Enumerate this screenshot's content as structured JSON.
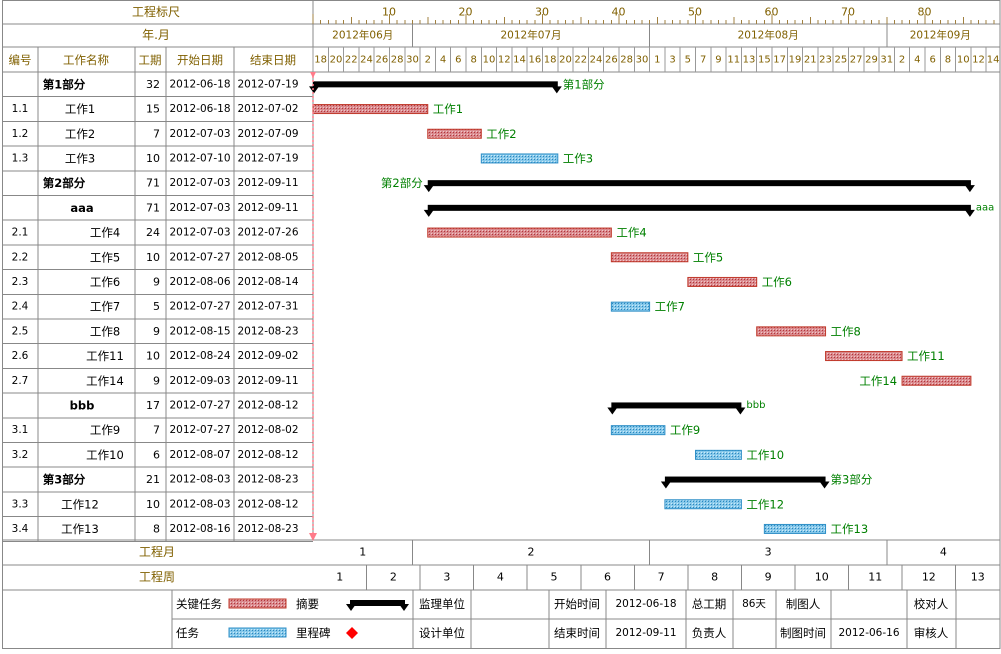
{
  "header": {
    "ruler_label": "工程标尺",
    "year_month_label": "年.月",
    "columns": [
      "编号",
      "工作名称",
      "工期",
      "开始日期",
      "结束日期"
    ],
    "ruler_ticks": [
      "10",
      "20",
      "30",
      "40",
      "50",
      "60",
      "70",
      "80"
    ],
    "months": [
      "2012年06月",
      "2012年07月",
      "2012年08月",
      "2012年09月"
    ],
    "day_labels": [
      "18",
      "20",
      "22",
      "24",
      "26",
      "28",
      "30",
      "2",
      "4",
      "6",
      "8",
      "10",
      "12",
      "14",
      "16",
      "18",
      "20",
      "22",
      "24",
      "26",
      "28",
      "30",
      "1",
      "3",
      "5",
      "7",
      "9",
      "11",
      "13",
      "15",
      "17",
      "19",
      "21",
      "23",
      "25",
      "27",
      "29",
      "31",
      "2",
      "4",
      "6",
      "8",
      "10",
      "12",
      "14"
    ]
  },
  "chart_data": {
    "type": "gantt",
    "x_axis": {
      "start_date": "2012-06-18",
      "end_date": "2012-09-14"
    },
    "tasks": [
      {
        "id": "",
        "name": "第1部分",
        "duration": 32,
        "start": "2012-06-18",
        "end": "2012-07-19",
        "kind": "summary",
        "level": 0
      },
      {
        "id": "1.1",
        "name": "工作1",
        "duration": 15,
        "start": "2012-06-18",
        "end": "2012-07-02",
        "kind": "critical",
        "level": 1
      },
      {
        "id": "1.2",
        "name": "工作2",
        "duration": 7,
        "start": "2012-07-03",
        "end": "2012-07-09",
        "kind": "critical",
        "level": 1
      },
      {
        "id": "1.3",
        "name": "工作3",
        "duration": 10,
        "start": "2012-07-10",
        "end": "2012-07-19",
        "kind": "task",
        "level": 1
      },
      {
        "id": "",
        "name": "第2部分",
        "duration": 71,
        "start": "2012-07-03",
        "end": "2012-09-11",
        "kind": "summary",
        "level": 0
      },
      {
        "id": "",
        "name": "aaa",
        "duration": 71,
        "start": "2012-07-03",
        "end": "2012-09-11",
        "kind": "summary",
        "level": 1
      },
      {
        "id": "2.1",
        "name": "工作4",
        "duration": 24,
        "start": "2012-07-03",
        "end": "2012-07-26",
        "kind": "critical",
        "level": 2
      },
      {
        "id": "2.2",
        "name": "工作5",
        "duration": 10,
        "start": "2012-07-27",
        "end": "2012-08-05",
        "kind": "critical",
        "level": 2
      },
      {
        "id": "2.3",
        "name": "工作6",
        "duration": 9,
        "start": "2012-08-06",
        "end": "2012-08-14",
        "kind": "critical",
        "level": 2
      },
      {
        "id": "2.4",
        "name": "工作7",
        "duration": 5,
        "start": "2012-07-27",
        "end": "2012-07-31",
        "kind": "task",
        "level": 2
      },
      {
        "id": "2.5",
        "name": "工作8",
        "duration": 9,
        "start": "2012-08-15",
        "end": "2012-08-23",
        "kind": "critical",
        "level": 2
      },
      {
        "id": "2.6",
        "name": "工作11",
        "duration": 10,
        "start": "2012-08-24",
        "end": "2012-09-02",
        "kind": "critical",
        "level": 2
      },
      {
        "id": "2.7",
        "name": "工作14",
        "duration": 9,
        "start": "2012-09-03",
        "end": "2012-09-11",
        "kind": "critical",
        "level": 2
      },
      {
        "id": "",
        "name": "bbb",
        "duration": 17,
        "start": "2012-07-27",
        "end": "2012-08-12",
        "kind": "summary",
        "level": 1
      },
      {
        "id": "3.1",
        "name": "工作9",
        "duration": 7,
        "start": "2012-07-27",
        "end": "2012-08-02",
        "kind": "task",
        "level": 2
      },
      {
        "id": "3.2",
        "name": "工作10",
        "duration": 6,
        "start": "2012-08-07",
        "end": "2012-08-12",
        "kind": "task",
        "level": 2
      },
      {
        "id": "",
        "name": "第3部分",
        "duration": 21,
        "start": "2012-08-03",
        "end": "2012-08-23",
        "kind": "summary",
        "level": 0
      },
      {
        "id": "3.3",
        "name": "工作12",
        "duration": 10,
        "start": "2012-08-03",
        "end": "2012-08-12",
        "kind": "task",
        "level": 1
      },
      {
        "id": "3.4",
        "name": "工作13",
        "duration": 8,
        "start": "2012-08-16",
        "end": "2012-08-23",
        "kind": "task",
        "level": 1
      }
    ],
    "label_left": [
      "第2部分",
      "工作14"
    ]
  },
  "footer": {
    "project_month_label": "工程月",
    "project_week_label": "工程周",
    "month_numbers": [
      "1",
      "2",
      "3",
      "4"
    ],
    "week_numbers": [
      "1",
      "2",
      "3",
      "4",
      "5",
      "6",
      "7",
      "8",
      "9",
      "10",
      "11",
      "12",
      "13"
    ],
    "legend": {
      "critical": "关键任务",
      "summary": "摘要",
      "task": "任务",
      "milestone": "里程碑"
    },
    "info": {
      "supervision_unit": "监理单位",
      "design_unit": "设计单位",
      "start_time_label": "开始时间",
      "start_time": "2012-06-18",
      "end_time_label": "结束时间",
      "end_time": "2012-09-11",
      "total_duration_label": "总工期",
      "total_duration": "86天",
      "responsible_label": "负责人",
      "drafter_label": "制图人",
      "draft_time_label": "制图时间",
      "draft_time": "2012-06-16",
      "proofreader_label": "校对人",
      "reviewer_label": "审核人"
    }
  },
  "colors": {
    "critical": "#d88c90",
    "critical_border": "#c0392b",
    "task": "#7fc4e8",
    "task_border": "#2f8fc7",
    "summary": "#000000",
    "grid": "#888888",
    "gold_text": "#806000",
    "green_text": "#008000",
    "milestone": "#ff0000",
    "marker": "#ff7b8a"
  }
}
